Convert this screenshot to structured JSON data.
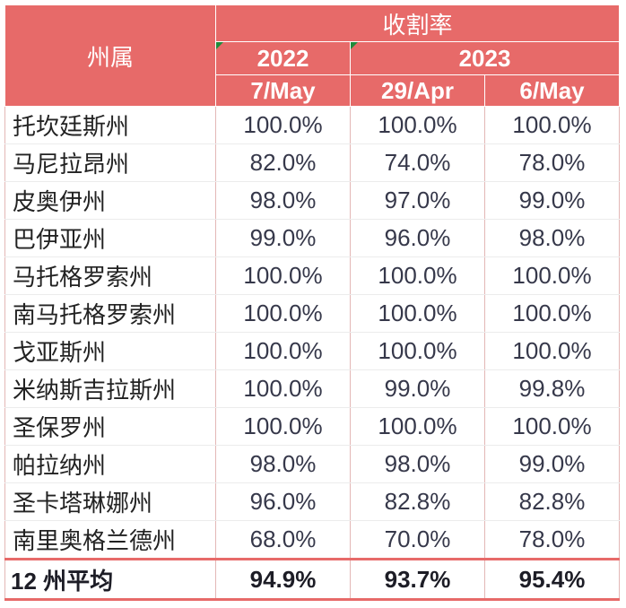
{
  "header": {
    "region_label": "州属",
    "metric_label": "收割率",
    "years": [
      "2022",
      "2023"
    ],
    "dates": [
      "7/May",
      "29/Apr",
      "6/May"
    ]
  },
  "rows": [
    {
      "region": "托坎廷斯州",
      "values": [
        "100.0%",
        "100.0%",
        "100.0%"
      ]
    },
    {
      "region": "马尼拉昂州",
      "values": [
        "82.0%",
        "74.0%",
        "78.0%"
      ]
    },
    {
      "region": "皮奥伊州",
      "values": [
        "98.0%",
        "97.0%",
        "99.0%"
      ]
    },
    {
      "region": "巴伊亚州",
      "values": [
        "99.0%",
        "96.0%",
        "98.0%"
      ]
    },
    {
      "region": "马托格罗索州",
      "values": [
        "100.0%",
        "100.0%",
        "100.0%"
      ]
    },
    {
      "region": "南马托格罗索州",
      "values": [
        "100.0%",
        "100.0%",
        "100.0%"
      ]
    },
    {
      "region": "戈亚斯州",
      "values": [
        "100.0%",
        "100.0%",
        "100.0%"
      ]
    },
    {
      "region": "米纳斯吉拉斯州",
      "values": [
        "100.0%",
        "99.0%",
        "99.8%"
      ]
    },
    {
      "region": "圣保罗州",
      "values": [
        "100.0%",
        "100.0%",
        "100.0%"
      ]
    },
    {
      "region": "帕拉纳州",
      "values": [
        "98.0%",
        "98.0%",
        "99.0%"
      ]
    },
    {
      "region": "圣卡塔琳娜州",
      "values": [
        "96.0%",
        "82.8%",
        "82.8%"
      ]
    },
    {
      "region": "南里奥格兰德州",
      "values": [
        "68.0%",
        "70.0%",
        "78.0%"
      ]
    }
  ],
  "average": {
    "label": "12 州平均",
    "values": [
      "94.9%",
      "93.7%",
      "95.4%"
    ]
  },
  "colors": {
    "header_bg": "#e76a69",
    "header_text": "#ffffff",
    "marker": "#1f8a3a"
  }
}
